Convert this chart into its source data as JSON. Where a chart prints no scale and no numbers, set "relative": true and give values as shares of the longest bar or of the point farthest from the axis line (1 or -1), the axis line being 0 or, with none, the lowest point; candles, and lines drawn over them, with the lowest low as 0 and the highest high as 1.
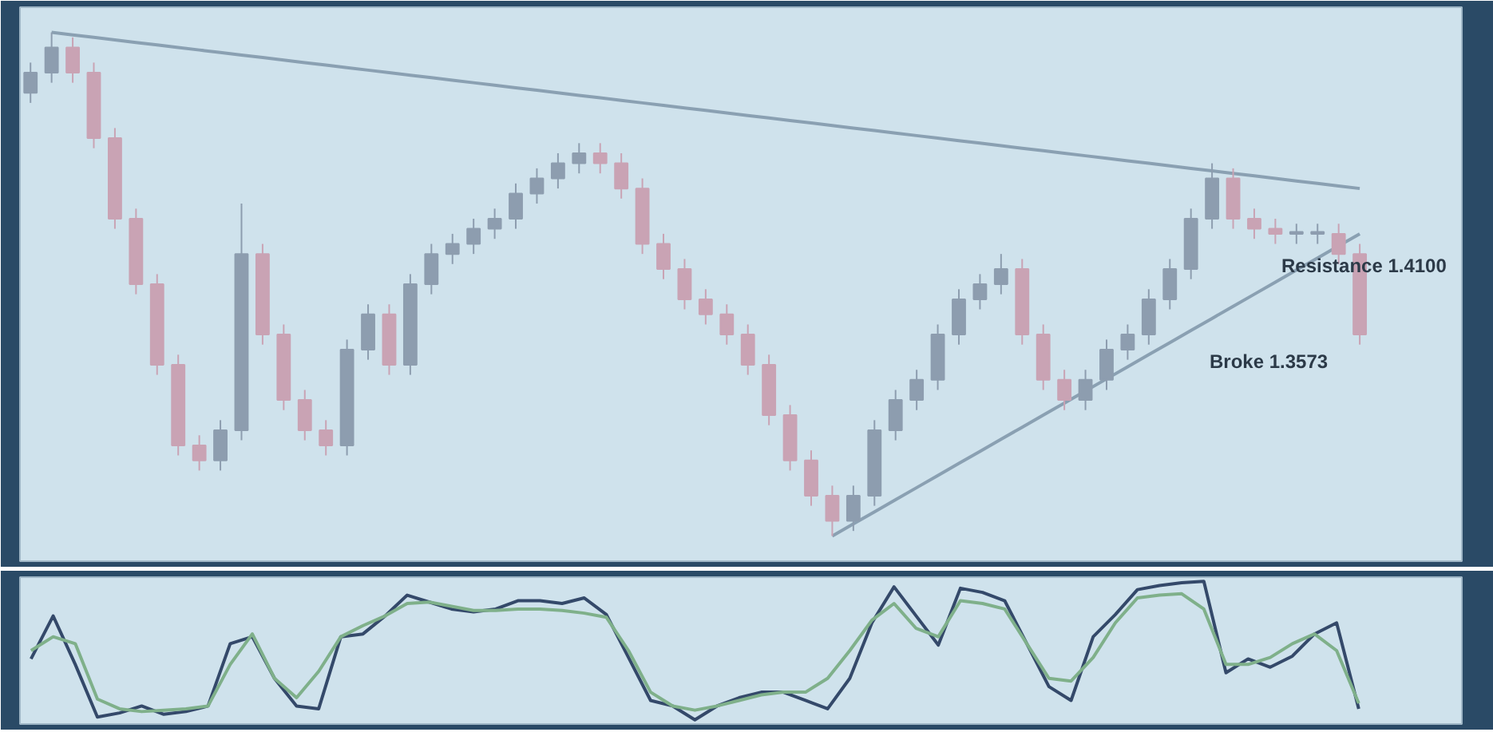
{
  "chart_data": [
    {
      "type": "candlestick",
      "relative": true,
      "tick_labels": false,
      "colors": [
        "#8d9daf",
        "#8d9daf",
        "#c9a3b4",
        "#c9a3b4",
        "#c9a3b4",
        "#c9a3b4",
        "#c9a3b4",
        "#c9a3b4",
        "#c9a3b4",
        "#8d9daf",
        "#8d9daf",
        "#c9a3b4",
        "#c9a3b4",
        "#c9a3b4",
        "#c9a3b4",
        "#8d9daf",
        "#8d9daf",
        "#c9a3b4",
        "#8d9daf",
        "#8d9daf",
        "#8d9daf",
        "#8d9daf",
        "#8d9daf",
        "#8d9daf",
        "#8d9daf",
        "#8d9daf",
        "#8d9daf",
        "#c9a3b4",
        "#c9a3b4",
        "#c9a3b4",
        "#c9a3b4",
        "#c9a3b4",
        "#c9a3b4",
        "#c9a3b4",
        "#c9a3b4",
        "#c9a3b4",
        "#c9a3b4",
        "#c9a3b4",
        "#c9a3b4",
        "#8d9daf",
        "#8d9daf",
        "#8d9daf",
        "#8d9daf",
        "#8d9daf",
        "#8d9daf",
        "#8d9daf",
        "#8d9daf",
        "#c9a3b4",
        "#c9a3b4",
        "#c9a3b4",
        "#8d9daf",
        "#8d9daf",
        "#8d9daf",
        "#8d9daf",
        "#8d9daf",
        "#8d9daf",
        "#8d9daf",
        "#c9a3b4",
        "#c9a3b4",
        "#c9a3b4",
        "#8d9daf",
        "#8d9daf",
        "#c9a3b4",
        "#c9a3b4"
      ],
      "categories": [
        null,
        null,
        null,
        null,
        null,
        null,
        null,
        null,
        null,
        null,
        null,
        null,
        null,
        null,
        null,
        null,
        null,
        null,
        null,
        null,
        null,
        null,
        null,
        null,
        null,
        null,
        null,
        null,
        null,
        null,
        null,
        null,
        null,
        null,
        null,
        null,
        null,
        null,
        null,
        null,
        null,
        null,
        null,
        null,
        null,
        null,
        null,
        null,
        null,
        null,
        null,
        null,
        null,
        null,
        null,
        null,
        null,
        null,
        null,
        null,
        null,
        null,
        null,
        null
      ],
      "ohlc": [
        [
          0.88,
          0.94,
          0.86,
          0.92
        ],
        [
          0.92,
          1.0,
          0.9,
          0.97
        ],
        [
          0.97,
          0.99,
          0.9,
          0.92
        ],
        [
          0.92,
          0.94,
          0.77,
          0.79
        ],
        [
          0.79,
          0.81,
          0.61,
          0.63
        ],
        [
          0.63,
          0.65,
          0.48,
          0.5
        ],
        [
          0.5,
          0.52,
          0.32,
          0.34
        ],
        [
          0.34,
          0.36,
          0.16,
          0.18
        ],
        [
          0.18,
          0.2,
          0.13,
          0.15
        ],
        [
          0.15,
          0.23,
          0.13,
          0.21
        ],
        [
          0.21,
          0.66,
          0.19,
          0.56
        ],
        [
          0.56,
          0.58,
          0.38,
          0.4
        ],
        [
          0.4,
          0.42,
          0.25,
          0.27
        ],
        [
          0.27,
          0.29,
          0.19,
          0.21
        ],
        [
          0.21,
          0.23,
          0.16,
          0.18
        ],
        [
          0.18,
          0.39,
          0.16,
          0.37
        ],
        [
          0.37,
          0.46,
          0.35,
          0.44
        ],
        [
          0.44,
          0.46,
          0.32,
          0.34
        ],
        [
          0.34,
          0.52,
          0.32,
          0.5
        ],
        [
          0.5,
          0.58,
          0.48,
          0.56
        ],
        [
          0.56,
          0.6,
          0.54,
          0.58
        ],
        [
          0.58,
          0.63,
          0.56,
          0.61
        ],
        [
          0.61,
          0.65,
          0.59,
          0.63
        ],
        [
          0.63,
          0.7,
          0.61,
          0.68
        ],
        [
          0.68,
          0.73,
          0.66,
          0.71
        ],
        [
          0.71,
          0.76,
          0.69,
          0.74
        ],
        [
          0.74,
          0.78,
          0.72,
          0.76
        ],
        [
          0.76,
          0.78,
          0.72,
          0.74
        ],
        [
          0.74,
          0.76,
          0.67,
          0.69
        ],
        [
          0.69,
          0.71,
          0.56,
          0.58
        ],
        [
          0.58,
          0.6,
          0.51,
          0.53
        ],
        [
          0.53,
          0.55,
          0.45,
          0.47
        ],
        [
          0.47,
          0.49,
          0.42,
          0.44
        ],
        [
          0.44,
          0.46,
          0.38,
          0.4
        ],
        [
          0.4,
          0.42,
          0.32,
          0.34
        ],
        [
          0.34,
          0.36,
          0.22,
          0.24
        ],
        [
          0.24,
          0.26,
          0.13,
          0.15
        ],
        [
          0.15,
          0.17,
          0.06,
          0.08
        ],
        [
          0.08,
          0.1,
          0.0,
          0.03
        ],
        [
          0.03,
          0.1,
          0.01,
          0.08
        ],
        [
          0.08,
          0.23,
          0.06,
          0.21
        ],
        [
          0.21,
          0.29,
          0.19,
          0.27
        ],
        [
          0.27,
          0.33,
          0.25,
          0.31
        ],
        [
          0.31,
          0.42,
          0.29,
          0.4
        ],
        [
          0.4,
          0.49,
          0.38,
          0.47
        ],
        [
          0.47,
          0.52,
          0.45,
          0.5
        ],
        [
          0.5,
          0.56,
          0.48,
          0.53
        ],
        [
          0.53,
          0.55,
          0.38,
          0.4
        ],
        [
          0.4,
          0.42,
          0.29,
          0.31
        ],
        [
          0.31,
          0.33,
          0.25,
          0.27
        ],
        [
          0.27,
          0.33,
          0.25,
          0.31
        ],
        [
          0.31,
          0.39,
          0.29,
          0.37
        ],
        [
          0.37,
          0.42,
          0.35,
          0.4
        ],
        [
          0.4,
          0.49,
          0.38,
          0.47
        ],
        [
          0.47,
          0.55,
          0.45,
          0.53
        ],
        [
          0.53,
          0.65,
          0.51,
          0.63
        ],
        [
          0.63,
          0.74,
          0.61,
          0.71
        ],
        [
          0.71,
          0.73,
          0.61,
          0.63
        ],
        [
          0.63,
          0.65,
          0.59,
          0.61
        ],
        [
          0.61,
          0.63,
          0.58,
          0.6
        ],
        [
          0.6,
          0.62,
          0.58,
          0.6
        ],
        [
          0.6,
          0.62,
          0.58,
          0.6
        ],
        [
          0.6,
          0.62,
          0.54,
          0.56
        ],
        [
          0.56,
          0.58,
          0.38,
          0.4
        ]
      ],
      "series": [
        {
          "type": "line",
          "color": "#8aa0b2",
          "values": [
            null,
            1,
            0.995,
            0.99,
            0.985,
            0.98,
            0.975,
            0.97,
            0.965,
            0.96,
            0.955,
            0.95,
            0.945,
            0.94,
            0.935,
            0.93,
            0.925,
            0.92,
            0.915,
            0.91,
            0.905,
            0.9,
            0.895,
            0.89,
            0.885,
            0.88,
            0.875,
            0.87,
            0.865,
            0.86,
            0.855,
            0.85,
            0.845,
            0.84,
            0.835,
            0.83,
            0.825,
            0.82,
            0.815,
            0.81,
            0.805,
            0.8,
            0.795,
            0.79,
            0.785,
            0.78,
            0.775,
            0.77,
            0.765,
            0.76,
            0.755,
            0.75,
            0.745,
            0.74,
            0.735,
            0.73,
            0.725,
            0.72,
            0.715,
            0.71,
            0.705,
            0.7,
            0.695,
            0.69
          ]
        },
        {
          "type": "line",
          "color": "#8aa0b2",
          "values": [
            null,
            null,
            null,
            null,
            null,
            null,
            null,
            null,
            null,
            null,
            null,
            null,
            null,
            null,
            null,
            null,
            null,
            null,
            null,
            null,
            null,
            null,
            null,
            null,
            null,
            null,
            null,
            null,
            null,
            null,
            null,
            null,
            null,
            null,
            null,
            null,
            null,
            null,
            0,
            0.024,
            0.048,
            0.072,
            0.096,
            0.12,
            0.144,
            0.168,
            0.192,
            0.216,
            0.24,
            0.264,
            0.288,
            0.312,
            0.336,
            0.36,
            0.384,
            0.408,
            0.432,
            0.456,
            0.48,
            0.504,
            0.528,
            0.552,
            0.576,
            0.6
          ]
        }
      ],
      "annotations": [
        "Resistance 1.4100",
        "Broke 1.3573"
      ]
    },
    {
      "type": "line",
      "relative": true,
      "tick_labels": false,
      "categories": [
        null,
        null,
        null,
        null,
        null,
        null,
        null,
        null,
        null,
        null,
        null,
        null,
        null,
        null,
        null,
        null,
        null,
        null,
        null,
        null,
        null,
        null,
        null,
        null,
        null,
        null,
        null,
        null,
        null,
        null,
        null,
        null,
        null,
        null,
        null,
        null,
        null,
        null,
        null,
        null,
        null,
        null,
        null,
        null,
        null,
        null,
        null,
        null,
        null,
        null,
        null,
        null,
        null,
        null,
        null,
        null,
        null,
        null,
        null,
        null,
        null
      ],
      "series": [
        {
          "color": "#34496a",
          "values": [
            0.44,
            0.75,
            0.4,
            0.02,
            0.05,
            0.1,
            0.04,
            0.06,
            0.1,
            0.55,
            0.6,
            0.3,
            0.1,
            0.08,
            0.6,
            0.62,
            0.75,
            0.9,
            0.85,
            0.8,
            0.78,
            0.8,
            0.86,
            0.86,
            0.84,
            0.88,
            0.76,
            0.45,
            0.14,
            0.1,
            0,
            0.1,
            0.16,
            0.2,
            0.2,
            0.14,
            0.08,
            0.3,
            0.7,
            0.96,
            0.75,
            0.54,
            0.95,
            0.92,
            0.86,
            0.55,
            0.24,
            0.14,
            0.6,
            0.76,
            0.94,
            0.97,
            0.99,
            1.0,
            0.34,
            0.44,
            0.38,
            0.46,
            0.62,
            0.7,
            0.08
          ]
        },
        {
          "color": "#7fb08a",
          "values": [
            0.5,
            0.6,
            0.55,
            0.15,
            0.08,
            0.06,
            0.07,
            0.08,
            0.1,
            0.4,
            0.62,
            0.3,
            0.16,
            0.35,
            0.6,
            0.68,
            0.75,
            0.84,
            0.85,
            0.82,
            0.79,
            0.79,
            0.8,
            0.8,
            0.79,
            0.77,
            0.74,
            0.5,
            0.2,
            0.1,
            0.07,
            0.1,
            0.14,
            0.18,
            0.2,
            0.2,
            0.3,
            0.5,
            0.72,
            0.84,
            0.66,
            0.6,
            0.86,
            0.84,
            0.8,
            0.55,
            0.3,
            0.28,
            0.45,
            0.7,
            0.88,
            0.9,
            0.91,
            0.8,
            0.4,
            0.4,
            0.45,
            0.55,
            0.62,
            0.5,
            0.12
          ]
        }
      ]
    }
  ]
}
